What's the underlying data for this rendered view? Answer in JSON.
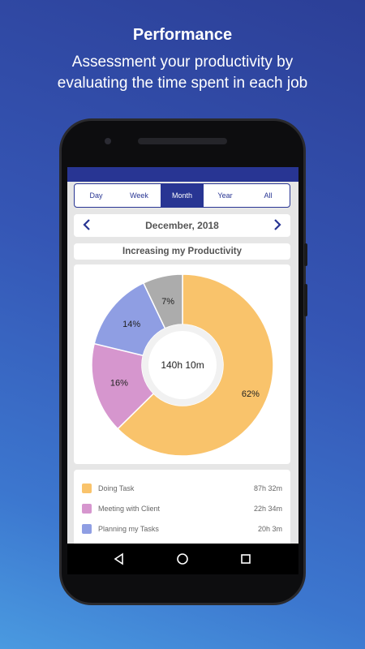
{
  "promo": {
    "title": "Performance",
    "subtitle_line1": "Assessment your productivity by",
    "subtitle_line2": "evaluating the time spent in each job"
  },
  "period_tabs": [
    {
      "label": "Day",
      "active": false
    },
    {
      "label": "Week",
      "active": false
    },
    {
      "label": "Month",
      "active": true
    },
    {
      "label": "Year",
      "active": false
    },
    {
      "label": "All",
      "active": false
    }
  ],
  "date_nav": {
    "label": "December, 2018",
    "prev_icon": "chevron-left-icon",
    "next_icon": "chevron-right-icon"
  },
  "chart_title": "Increasing my Productivity",
  "chart_data": {
    "type": "pie",
    "center_label": "140h 10m",
    "slices": [
      {
        "label": "62%",
        "value": 62,
        "color": "#f9c36b"
      },
      {
        "label": "16%",
        "value": 16,
        "color": "#d696ce"
      },
      {
        "label": "14%",
        "value": 14,
        "color": "#8f9ee3"
      },
      {
        "label": "7%",
        "value": 7,
        "color": "#acacac"
      }
    ]
  },
  "legend": [
    {
      "name": "Doing Task",
      "time": "87h 32m",
      "color": "#f9c36b"
    },
    {
      "name": "Meeting with Client",
      "time": "22h 34m",
      "color": "#d696ce"
    },
    {
      "name": "Planning my Tasks",
      "time": "20h 3m",
      "color": "#8f9ee3"
    }
  ],
  "nav_icons": [
    "back-icon",
    "home-icon",
    "recents-icon"
  ]
}
